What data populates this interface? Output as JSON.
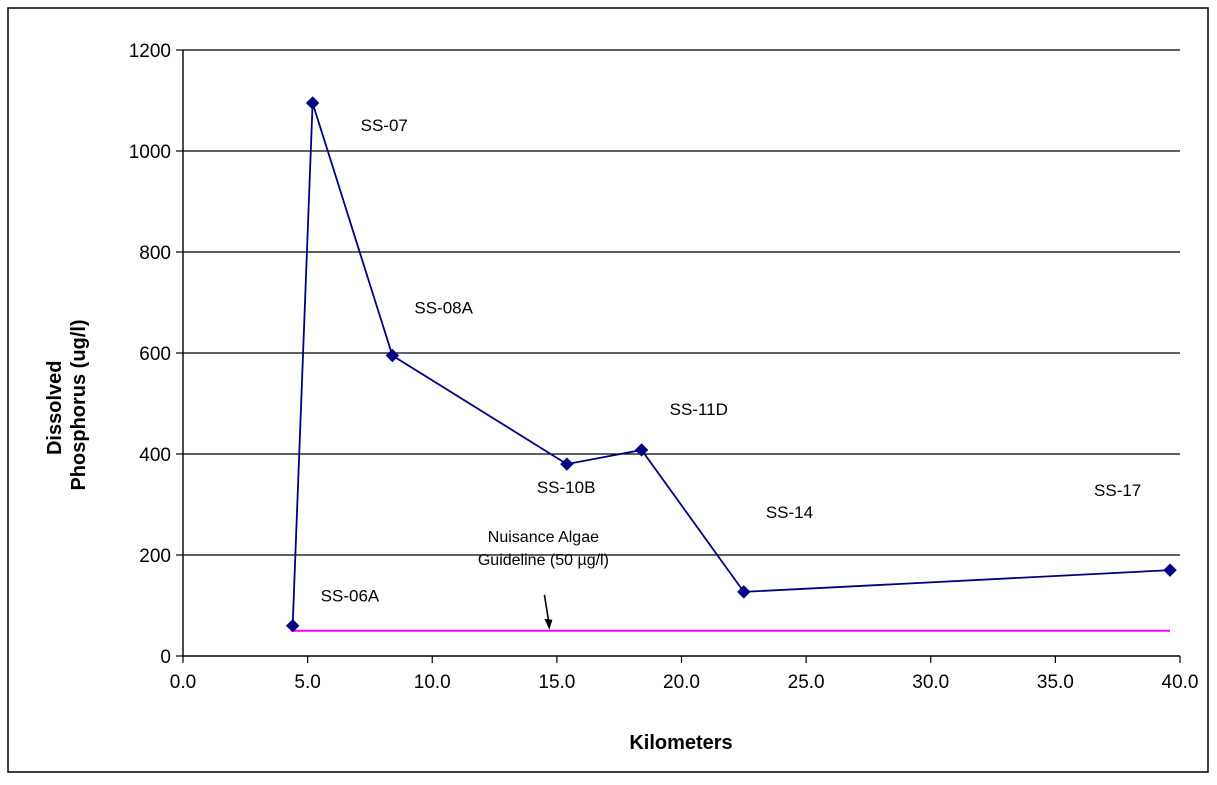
{
  "chart_data": {
    "type": "line",
    "title": "",
    "xlabel": "Kilometers",
    "ylabel_lines": [
      "Dissolved",
      "Phosphorus (ug/l)"
    ],
    "xlim": [
      0,
      40
    ],
    "ylim": [
      0,
      1200
    ],
    "x_ticks": [
      "0.0",
      "5.0",
      "10.0",
      "15.0",
      "20.0",
      "25.0",
      "30.0",
      "35.0",
      "40.0"
    ],
    "y_ticks": [
      "0",
      "200",
      "400",
      "600",
      "800",
      "1000",
      "1200"
    ],
    "grid": "horizontal",
    "legend": "none",
    "series": [
      {
        "color": "#000080",
        "marker": "diamond",
        "x": [
          4.4,
          5.2,
          8.4,
          15.4,
          18.4,
          22.5,
          39.6
        ],
        "y": [
          60,
          1095,
          595,
          380,
          408,
          127,
          170
        ],
        "labels": [
          "SS-06A",
          "SS-07",
          "SS-08A",
          "SS-10B",
          "SS-11D",
          "SS-14",
          "SS-17"
        ]
      }
    ],
    "guideline": {
      "y": 50,
      "x": [
        4.4,
        39.6
      ],
      "color": "#ff00ff",
      "label_lines": [
        "Nuisance Algae",
        "Guideline (50 µg/l)"
      ],
      "arrow_x": 14.7
    }
  }
}
